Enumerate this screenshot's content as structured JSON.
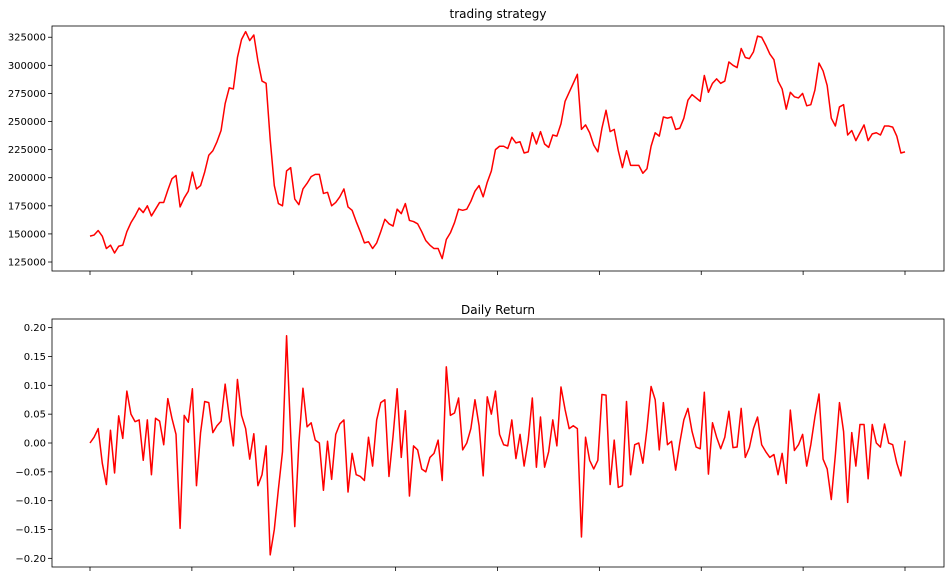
{
  "chart_data": [
    {
      "type": "line",
      "title": "trading strategy",
      "xlabel": "",
      "ylabel": "",
      "ylim": [
        117000,
        335000
      ],
      "yticks": [
        "125000",
        "150000",
        "175000",
        "200000",
        "225000",
        "250000",
        "275000",
        "300000",
        "325000"
      ],
      "xticks_count": 9,
      "grid": false,
      "series": [
        {
          "color": "#ff0000",
          "values": [
            148000,
            149000,
            153000,
            148000,
            137000,
            140000,
            133000,
            139000,
            140000,
            152000,
            160000,
            166000,
            173000,
            169000,
            175000,
            166000,
            172000,
            178000,
            178000,
            189000,
            199000,
            202000,
            174000,
            182000,
            188000,
            205000,
            190000,
            193000,
            205000,
            220000,
            224000,
            232000,
            242000,
            266000,
            280000,
            279000,
            307000,
            323000,
            330000,
            322000,
            327000,
            304000,
            286000,
            284000,
            234000,
            193000,
            177000,
            175000,
            206000,
            209000,
            181000,
            176000,
            190000,
            195000,
            201000,
            203000,
            203000,
            186000,
            187000,
            175000,
            178000,
            183000,
            190000,
            174000,
            171000,
            161000,
            152000,
            142000,
            143000,
            137000,
            142000,
            152000,
            163000,
            159000,
            157000,
            172000,
            168000,
            177000,
            162000,
            161000,
            159000,
            152000,
            144000,
            140000,
            137000,
            137000,
            128000,
            145000,
            151000,
            160000,
            172000,
            171000,
            172000,
            179000,
            188000,
            193000,
            183000,
            196000,
            206000,
            225000,
            228000,
            228000,
            226000,
            236000,
            231000,
            232000,
            222000,
            223000,
            240000,
            230000,
            241000,
            230000,
            227000,
            238000,
            237000,
            248000,
            268000,
            276000,
            284000,
            292000,
            243000,
            247000,
            240000,
            229000,
            223000,
            244000,
            260000,
            241000,
            243000,
            224000,
            209000,
            224000,
            211000,
            211000,
            211000,
            204000,
            208000,
            228000,
            240000,
            237000,
            254000,
            253000,
            254000,
            243000,
            244000,
            253000,
            269000,
            274000,
            271000,
            268000,
            291000,
            276000,
            284000,
            288000,
            284000,
            286000,
            303000,
            300000,
            298000,
            315000,
            307000,
            306000,
            312000,
            326000,
            325000,
            318000,
            310000,
            305000,
            286000,
            279000,
            261000,
            276000,
            272000,
            271000,
            275000,
            264000,
            265000,
            278000,
            302000,
            295000,
            282000,
            253000,
            246000,
            263000,
            265000,
            238000,
            242000,
            233000,
            240000,
            247000,
            233000,
            239000,
            240000,
            238000,
            246000,
            246000,
            245000,
            237000,
            222000,
            223000
          ]
        }
      ]
    },
    {
      "type": "line",
      "title": "Daily Return",
      "xlabel": "",
      "ylabel": "",
      "ylim": [
        -0.215,
        0.215
      ],
      "yticks": [
        "0.20",
        "0.15",
        "0.10",
        "0.05",
        "0.00",
        "−0.05",
        "−0.10",
        "−0.15",
        "−0.20"
      ],
      "xticks_count": 9,
      "grid": false,
      "series": [
        {
          "color": "#ff0000",
          "values": [
            0.0,
            0.01,
            0.025,
            -0.035,
            -0.072,
            0.022,
            -0.052,
            0.047,
            0.008,
            0.09,
            0.05,
            0.037,
            0.04,
            -0.03,
            0.04,
            -0.055,
            0.043,
            0.038,
            -0.003,
            0.077,
            0.043,
            0.015,
            -0.148,
            0.048,
            0.036,
            0.094,
            -0.074,
            0.018,
            0.072,
            0.07,
            0.018,
            0.03,
            0.038,
            0.102,
            0.045,
            -0.005,
            0.11,
            0.048,
            0.025,
            -0.028,
            0.016,
            -0.074,
            -0.055,
            -0.005,
            -0.194,
            -0.15,
            -0.08,
            -0.015,
            0.186,
            0.015,
            -0.145,
            0.0,
            0.095,
            0.028,
            0.035,
            0.005,
            0.0,
            -0.082,
            0.003,
            -0.063,
            0.015,
            0.033,
            0.04,
            -0.085,
            -0.018,
            -0.055,
            -0.058,
            -0.065,
            0.01,
            -0.04,
            0.04,
            0.07,
            0.075,
            -0.058,
            0.012,
            0.094,
            -0.025,
            0.056,
            -0.092,
            -0.005,
            -0.012,
            -0.045,
            -0.05,
            -0.025,
            -0.018,
            0.005,
            -0.065,
            0.132,
            0.048,
            0.052,
            0.078,
            -0.012,
            0.0,
            0.025,
            0.075,
            0.03,
            -0.057,
            0.08,
            0.05,
            0.09,
            0.015,
            -0.003,
            -0.005,
            0.04,
            -0.027,
            0.015,
            -0.04,
            0.005,
            0.078,
            -0.042,
            0.045,
            -0.042,
            -0.015,
            0.04,
            -0.005,
            0.097,
            0.058,
            0.025,
            0.03,
            0.025,
            -0.163,
            0.01,
            -0.03,
            -0.045,
            -0.03,
            0.084,
            0.083,
            -0.072,
            0.005,
            -0.077,
            -0.074,
            0.072,
            -0.055,
            -0.003,
            0.0,
            -0.035,
            0.025,
            0.098,
            0.075,
            -0.012,
            0.07,
            -0.003,
            0.003,
            -0.047,
            0.0,
            0.04,
            0.06,
            0.02,
            -0.007,
            -0.01,
            0.088,
            -0.054,
            0.035,
            0.01,
            -0.01,
            0.01,
            0.055,
            -0.008,
            -0.007,
            0.06,
            -0.025,
            -0.008,
            0.025,
            0.045,
            -0.003,
            -0.015,
            -0.025,
            -0.02,
            -0.055,
            -0.018,
            -0.07,
            0.057,
            -0.013,
            -0.003,
            0.015,
            -0.04,
            -0.003,
            0.045,
            0.085,
            -0.028,
            -0.045,
            -0.098,
            -0.02,
            0.07,
            0.02,
            -0.103,
            0.018,
            -0.04,
            0.032,
            0.032,
            -0.062,
            0.032,
            0.0,
            -0.007,
            0.033,
            0.0,
            -0.003,
            -0.035,
            -0.057,
            0.004
          ]
        }
      ]
    }
  ]
}
